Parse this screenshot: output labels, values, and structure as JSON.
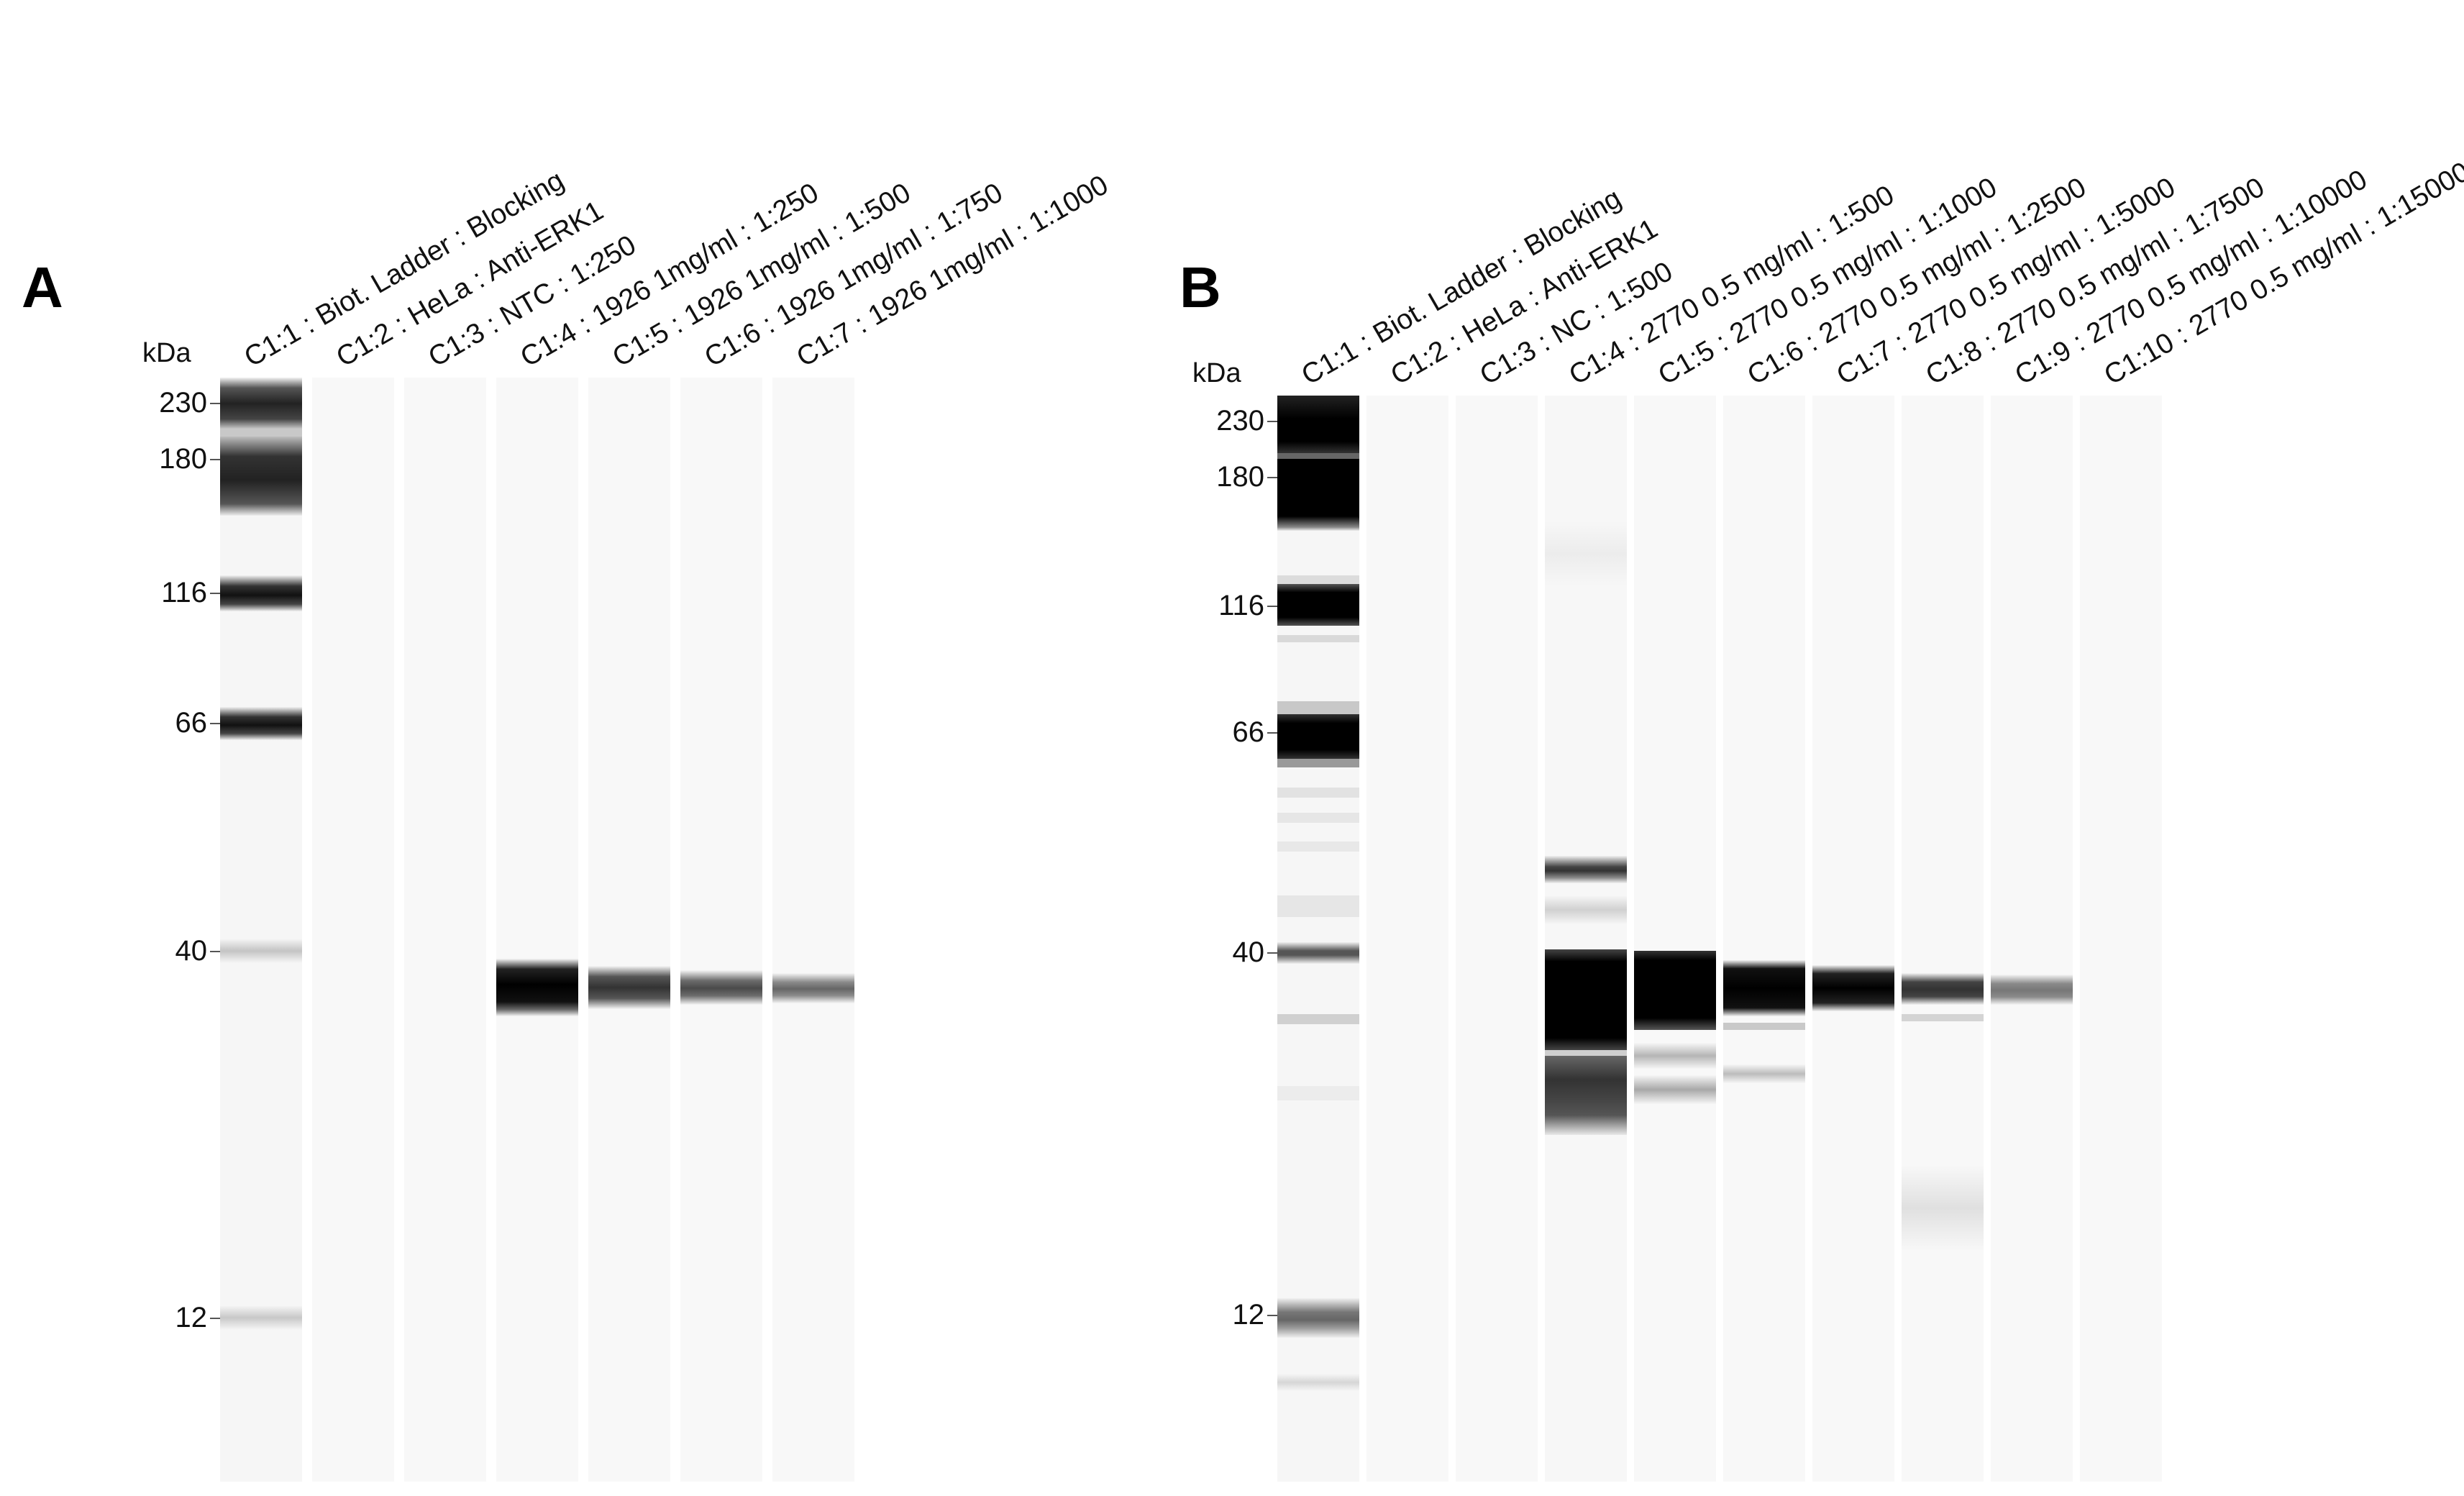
{
  "panels": [
    {
      "letter": "A",
      "unit_label": "kDa",
      "markers": [
        "230",
        "180",
        "116",
        "66",
        "40",
        "12"
      ],
      "lanes": [
        {
          "label": "C1:1 : Biot. Ladder : Blocking"
        },
        {
          "label": "C1:2 : HeLa : Anti-ERK1"
        },
        {
          "label": "C1:3 : NTC : 1:250"
        },
        {
          "label": "C1:4 : 1926 1mg/ml : 1:250"
        },
        {
          "label": "C1:5 : 1926 1mg/ml : 1:500"
        },
        {
          "label": "C1:6 : 1926 1mg/ml : 1:750"
        },
        {
          "label": "C1:7 : 1926 1mg/ml : 1:1000"
        }
      ]
    },
    {
      "letter": "B",
      "unit_label": "kDa",
      "markers": [
        "230",
        "180",
        "116",
        "66",
        "40",
        "12"
      ],
      "lanes": [
        {
          "label": "C1:1 : Biot. Ladder : Blocking"
        },
        {
          "label": "C1:2 : HeLa : Anti-ERK1"
        },
        {
          "label": "C1:3 : NC : 1:500"
        },
        {
          "label": "C1:4 : 2770 0.5 mg/ml : 1:500"
        },
        {
          "label": "C1:5 : 2770 0.5 mg/ml : 1:1000"
        },
        {
          "label": "C1:6 : 2770 0.5 mg/ml : 1:2500"
        },
        {
          "label": "C1:7 : 2770 0.5 mg/ml : 1:5000"
        },
        {
          "label": "C1:8 : 2770 0.5 mg/ml : 1:7500"
        },
        {
          "label": "C1:9 : 2770 0.5 mg/ml : 1:10000"
        },
        {
          "label": "C1:10 : 2770 0.5 mg/ml : 1:15000"
        }
      ]
    }
  ]
}
